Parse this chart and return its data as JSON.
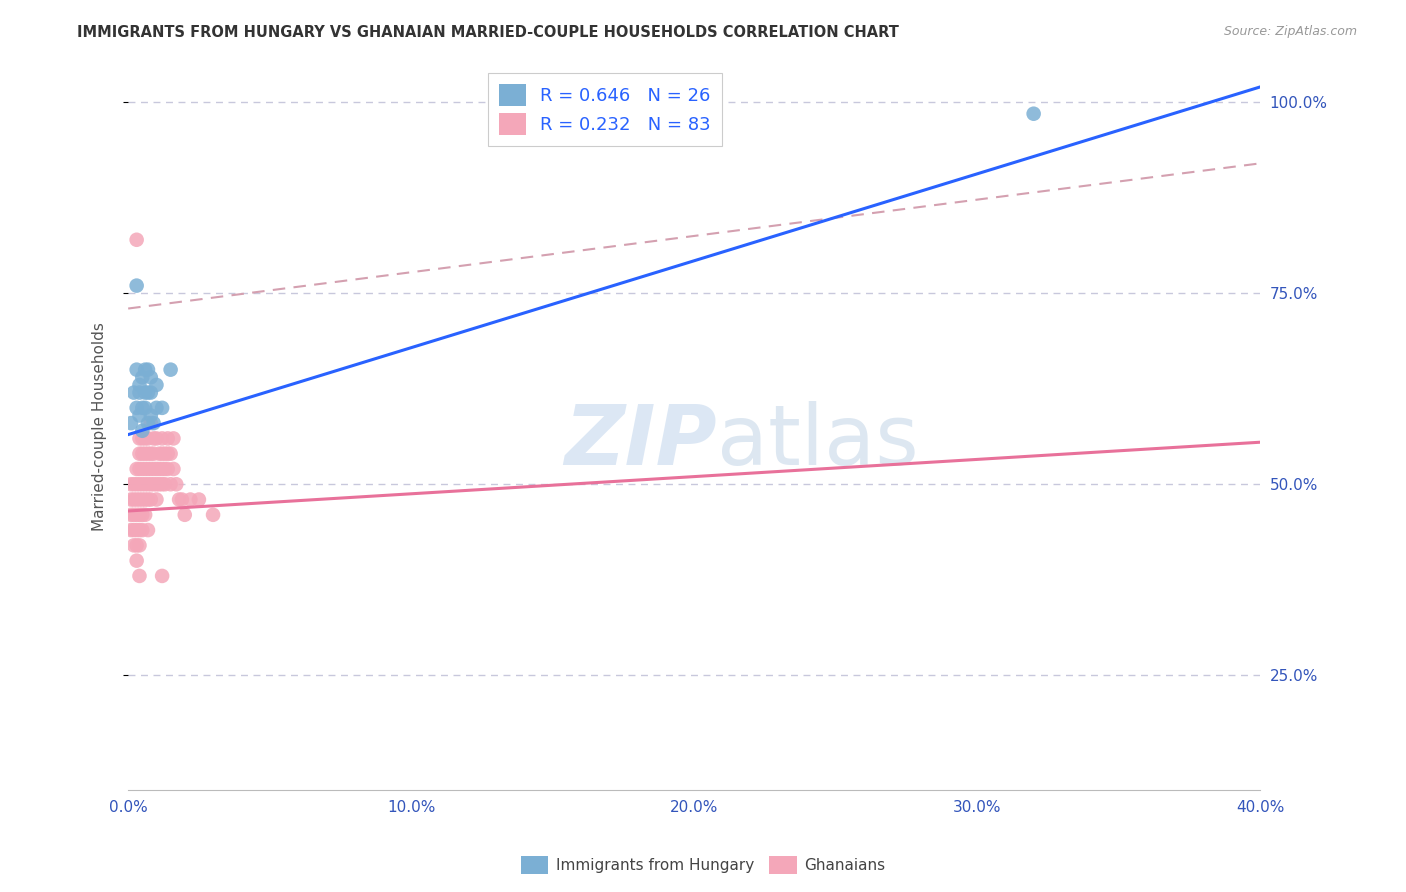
{
  "title": "IMMIGRANTS FROM HUNGARY VS GHANAIAN MARRIED-COUPLE HOUSEHOLDS CORRELATION CHART",
  "source": "Source: ZipAtlas.com",
  "xlim": [
    0.0,
    0.4
  ],
  "ylim": [
    0.1,
    1.05
  ],
  "ylabel": "Married-couple Households",
  "legend_label1": "Immigrants from Hungary",
  "legend_label2": "Ghanaians",
  "R1": 0.646,
  "N1": 26,
  "R2": 0.232,
  "N2": 83,
  "blue_color": "#7bafd4",
  "pink_color": "#f4a7b9",
  "blue_line_color": "#2962ff",
  "pink_line_color": "#e8719a",
  "dashed_line_color": "#d4a0b0",
  "blue_line_x0": 0.0,
  "blue_line_y0": 0.565,
  "blue_line_x1": 0.4,
  "blue_line_y1": 1.02,
  "pink_line_x0": 0.0,
  "pink_line_y0": 0.465,
  "pink_line_x1": 0.4,
  "pink_line_y1": 0.555,
  "dash_line_x0": 0.0,
  "dash_line_y0": 0.73,
  "dash_line_x1": 0.4,
  "dash_line_y1": 0.92,
  "blue_x": [
    0.001,
    0.002,
    0.003,
    0.003,
    0.003,
    0.004,
    0.004,
    0.004,
    0.005,
    0.005,
    0.005,
    0.006,
    0.006,
    0.006,
    0.007,
    0.007,
    0.007,
    0.008,
    0.008,
    0.008,
    0.009,
    0.01,
    0.01,
    0.012,
    0.015,
    0.32
  ],
  "blue_y": [
    0.58,
    0.62,
    0.6,
    0.65,
    0.76,
    0.59,
    0.63,
    0.62,
    0.57,
    0.6,
    0.64,
    0.6,
    0.62,
    0.65,
    0.58,
    0.62,
    0.65,
    0.59,
    0.62,
    0.64,
    0.58,
    0.6,
    0.63,
    0.6,
    0.65,
    0.985
  ],
  "pink_x": [
    0.001,
    0.001,
    0.001,
    0.001,
    0.002,
    0.002,
    0.002,
    0.002,
    0.002,
    0.003,
    0.003,
    0.003,
    0.003,
    0.003,
    0.003,
    0.003,
    0.004,
    0.004,
    0.004,
    0.004,
    0.004,
    0.004,
    0.004,
    0.004,
    0.005,
    0.005,
    0.005,
    0.005,
    0.005,
    0.005,
    0.005,
    0.006,
    0.006,
    0.006,
    0.006,
    0.006,
    0.006,
    0.007,
    0.007,
    0.007,
    0.007,
    0.007,
    0.008,
    0.008,
    0.008,
    0.008,
    0.008,
    0.009,
    0.009,
    0.009,
    0.009,
    0.01,
    0.01,
    0.01,
    0.01,
    0.011,
    0.011,
    0.011,
    0.012,
    0.012,
    0.012,
    0.012,
    0.013,
    0.013,
    0.013,
    0.014,
    0.014,
    0.014,
    0.015,
    0.015,
    0.016,
    0.016,
    0.017,
    0.018,
    0.019,
    0.02,
    0.022,
    0.025,
    0.03,
    0.003,
    0.004,
    0.007,
    0.012
  ],
  "pink_y": [
    0.44,
    0.46,
    0.48,
    0.5,
    0.42,
    0.44,
    0.46,
    0.48,
    0.5,
    0.4,
    0.42,
    0.44,
    0.46,
    0.48,
    0.5,
    0.52,
    0.42,
    0.44,
    0.46,
    0.48,
    0.5,
    0.52,
    0.54,
    0.56,
    0.44,
    0.46,
    0.48,
    0.5,
    0.52,
    0.54,
    0.56,
    0.46,
    0.48,
    0.5,
    0.52,
    0.54,
    0.56,
    0.48,
    0.5,
    0.52,
    0.54,
    0.56,
    0.48,
    0.5,
    0.52,
    0.54,
    0.58,
    0.5,
    0.52,
    0.54,
    0.56,
    0.48,
    0.5,
    0.52,
    0.56,
    0.5,
    0.52,
    0.54,
    0.5,
    0.52,
    0.54,
    0.56,
    0.5,
    0.52,
    0.54,
    0.52,
    0.54,
    0.56,
    0.5,
    0.54,
    0.52,
    0.56,
    0.5,
    0.48,
    0.48,
    0.46,
    0.48,
    0.48,
    0.46,
    0.82,
    0.38,
    0.44,
    0.38
  ]
}
